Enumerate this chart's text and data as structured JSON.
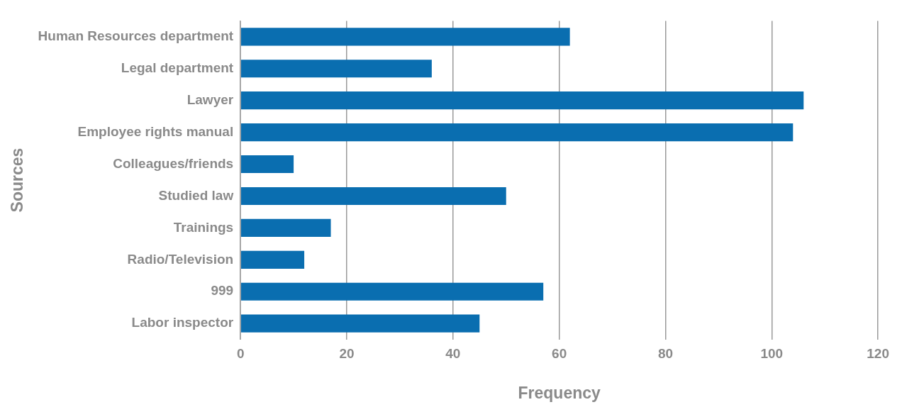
{
  "chart_data": {
    "type": "bar",
    "orientation": "horizontal",
    "xlabel": "Frequency",
    "ylabel": "Sources",
    "categories": [
      "Human Resources department",
      "Legal department",
      "Lawyer",
      "Employee rights manual",
      "Colleagues/friends",
      "Studied law",
      "Trainings",
      "Radio/Television",
      "999",
      "Labor inspector"
    ],
    "values": [
      62,
      36,
      106,
      104,
      10,
      50,
      17,
      12,
      57,
      45
    ],
    "color": "#0a6eb0",
    "xlim": [
      0,
      120
    ],
    "xticks": [
      0,
      20,
      40,
      60,
      80,
      100,
      120
    ],
    "grid": "x",
    "legend": false
  }
}
